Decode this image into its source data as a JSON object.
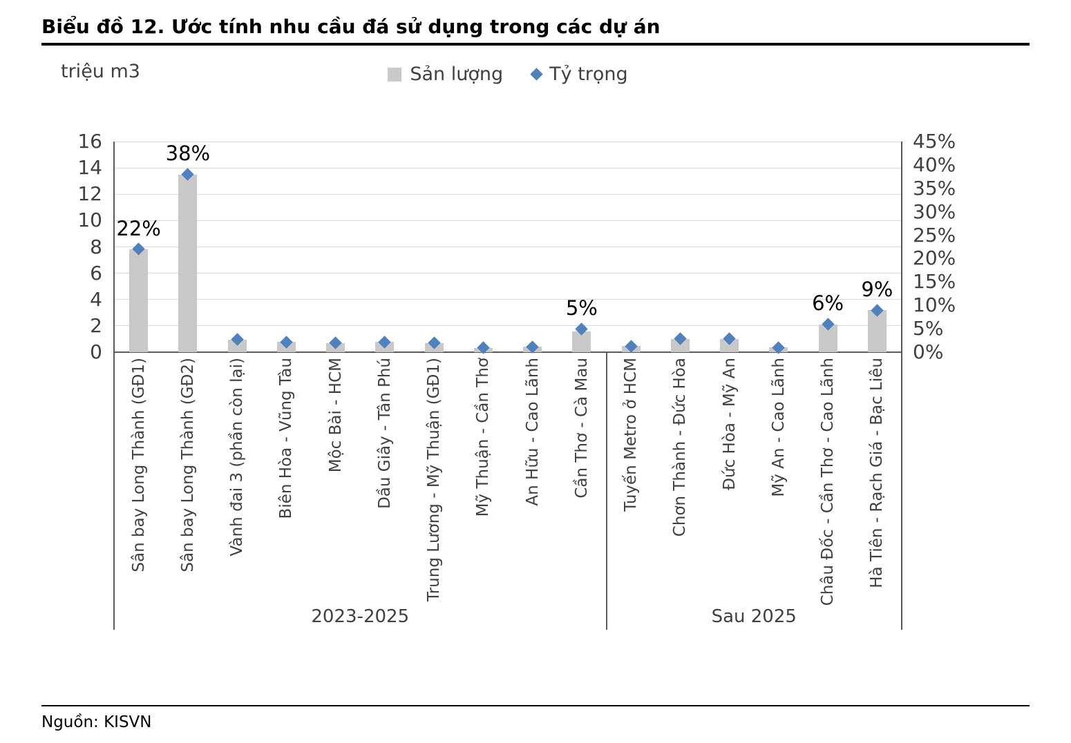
{
  "title": "Biểu đồ 12. Ước tính nhu cầu đá sử dụng trong các dự án",
  "axis_unit_label": "triệu m3",
  "source": "Nguồn: KISVN",
  "legend": [
    {
      "label": "Sản lượng",
      "swatch": "bar-square"
    },
    {
      "label": "Tỷ trọng",
      "swatch": "diamond"
    }
  ],
  "colors": {
    "bar": "#c9c9c9",
    "marker": "#4f81bd",
    "grid": "#d9d9d9",
    "axis": "#595959",
    "text": "#404040",
    "title": "#000000"
  },
  "chart_data": {
    "type": "bar",
    "subtype": "bar-with-scatter-markers-combo",
    "title": "Biểu đồ 12. Ước tính nhu cầu đá sử dụng trong các dự án",
    "xlabel": "",
    "ylabel_left": "triệu m3",
    "ylabel_right": "%",
    "grid": true,
    "legend_position": "top",
    "categories": [
      "Sân bay Long Thành (GĐ1)",
      "Sân bay Long Thành (GĐ2)",
      "Vành đai 3 (phần còn lại)",
      "Biên Hòa - Vũng Tàu",
      "Mộc Bài - HCM",
      "Dầu Giây - Tân Phú",
      "Trung Lương - Mỹ Thuận (GĐ1)",
      "Mỹ Thuận - Cần Thơ",
      "An Hữu - Cao Lãnh",
      "Cần Thơ - Cà Mau",
      "Tuyến Metro ở HCM",
      "Chơn Thành - Đức Hòa",
      "Đức Hòa - Mỹ An",
      "Mỹ An - Cao Lãnh",
      "Châu Đốc - Cần Thơ - Cao Lãnh",
      "Hà Tiên - Rạch Giá - Bạc Liêu"
    ],
    "groups": [
      {
        "label": "2023-2025",
        "count": 10
      },
      {
        "label": "Sau 2025",
        "count": 6
      }
    ],
    "series": [
      {
        "name": "Sản lượng",
        "type": "bar",
        "axis": "left",
        "unit": "triệu m3",
        "values": [
          7.8,
          13.5,
          0.95,
          0.8,
          0.7,
          0.8,
          0.7,
          0.3,
          0.4,
          1.6,
          0.45,
          1.0,
          1.0,
          0.35,
          2.1,
          3.2
        ]
      },
      {
        "name": "Tỷ trọng",
        "type": "scatter",
        "axis": "right",
        "unit": "%",
        "values": [
          22,
          38,
          2.7,
          2.2,
          2.0,
          2.2,
          2.0,
          0.9,
          1.1,
          5,
          1.3,
          2.9,
          2.9,
          1.0,
          6,
          9
        ],
        "labels": {
          "0": "22%",
          "1": "38%",
          "9": "5%",
          "14": "6%",
          "15": "9%"
        }
      }
    ],
    "left_axis": {
      "min": 0,
      "max": 16,
      "step": 2
    },
    "right_axis": {
      "min": 0,
      "max": 45,
      "step": 5,
      "format": "percent"
    }
  }
}
